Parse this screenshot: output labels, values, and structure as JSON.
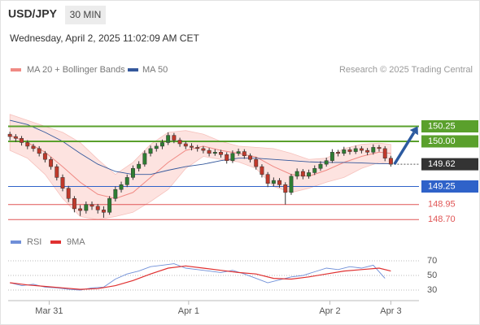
{
  "header": {
    "symbol": "USD/JPY",
    "timeframe": "30 MIN",
    "timestamp": "Wednesday, April 2, 2025 11:02:09 AM CET",
    "credit": "Research © 2025 Trading Central"
  },
  "chart_data": [
    {
      "type": "candlestick",
      "legend": [
        {
          "name": "MA 20 + Bollinger Bands",
          "color": "#f08a84"
        },
        {
          "name": "MA 50",
          "color": "#34589c"
        }
      ],
      "up_color": "#2e7d32",
      "down_color": "#c0392b",
      "opens": [
        150.12,
        150.08,
        150.05,
        149.98,
        149.92,
        149.88,
        149.8,
        149.7,
        149.58,
        149.4,
        149.22,
        149.05,
        148.88,
        148.85,
        148.95,
        148.92,
        148.86,
        148.82,
        149.05,
        149.2,
        149.28,
        149.4,
        149.55,
        149.62,
        149.8,
        149.88,
        149.92,
        149.98,
        150.1,
        150.02,
        149.96,
        149.92,
        149.9,
        149.88,
        149.85,
        149.8,
        149.82,
        149.78,
        149.68,
        149.8,
        149.83,
        149.76,
        149.7,
        149.58,
        149.45,
        149.3,
        149.35,
        149.28,
        149.15,
        149.42,
        149.5,
        149.42,
        149.48,
        149.55,
        149.62,
        149.68,
        149.82,
        149.8,
        149.86,
        149.83,
        149.88,
        149.85,
        149.82,
        149.9,
        149.88,
        149.72
      ],
      "highs": [
        150.16,
        150.12,
        150.09,
        150.02,
        149.96,
        149.92,
        149.84,
        149.74,
        149.62,
        149.45,
        149.26,
        149.09,
        148.94,
        149.0,
        149.0,
        148.96,
        148.92,
        149.09,
        149.25,
        149.33,
        149.45,
        149.6,
        149.67,
        149.85,
        149.93,
        149.97,
        150.03,
        150.15,
        150.14,
        150.06,
        150.0,
        149.97,
        149.94,
        149.92,
        149.89,
        149.87,
        149.86,
        149.82,
        149.85,
        149.88,
        149.87,
        149.8,
        149.74,
        149.62,
        149.49,
        149.4,
        149.39,
        149.32,
        149.46,
        149.55,
        149.54,
        149.53,
        149.6,
        149.67,
        149.73,
        149.87,
        149.86,
        149.91,
        149.9,
        149.93,
        149.92,
        149.89,
        149.95,
        149.94,
        149.92,
        149.76
      ],
      "lows": [
        150.02,
        149.99,
        149.93,
        149.87,
        149.83,
        149.75,
        149.65,
        149.53,
        149.35,
        149.17,
        148.99,
        148.82,
        148.76,
        148.8,
        148.86,
        148.8,
        148.73,
        148.78,
        149.0,
        149.15,
        149.24,
        149.36,
        149.5,
        149.58,
        149.75,
        149.83,
        149.87,
        149.94,
        149.97,
        149.91,
        149.87,
        149.85,
        149.83,
        149.8,
        149.75,
        149.76,
        149.73,
        149.63,
        149.64,
        149.76,
        149.71,
        149.65,
        149.53,
        149.4,
        149.24,
        149.25,
        149.23,
        148.95,
        149.11,
        149.37,
        149.37,
        149.38,
        149.44,
        149.51,
        149.58,
        149.64,
        149.75,
        149.76,
        149.78,
        149.79,
        149.8,
        149.77,
        149.78,
        149.83,
        149.67,
        149.58
      ],
      "closes": [
        150.08,
        150.05,
        149.98,
        149.92,
        149.88,
        149.8,
        149.7,
        149.58,
        149.4,
        149.22,
        149.05,
        148.88,
        148.85,
        148.95,
        148.92,
        148.86,
        148.82,
        149.05,
        149.2,
        149.28,
        149.4,
        149.55,
        149.62,
        149.8,
        149.88,
        149.92,
        149.98,
        150.1,
        150.02,
        149.96,
        149.92,
        149.9,
        149.88,
        149.85,
        149.8,
        149.82,
        149.78,
        149.68,
        149.8,
        149.83,
        149.76,
        149.7,
        149.58,
        149.45,
        149.3,
        149.35,
        149.28,
        149.15,
        149.42,
        149.5,
        149.42,
        149.48,
        149.55,
        149.62,
        149.68,
        149.82,
        149.8,
        149.86,
        149.83,
        149.88,
        149.85,
        149.82,
        149.9,
        149.88,
        149.72,
        149.62
      ],
      "overlays": {
        "x": [
          0,
          3,
          6,
          9,
          12,
          15,
          18,
          21,
          24,
          27,
          30,
          33,
          36,
          39,
          42,
          45,
          48,
          51,
          54,
          57,
          60,
          63,
          65
        ],
        "ma20": [
          150.1,
          149.98,
          149.82,
          149.58,
          149.32,
          149.12,
          149.05,
          149.15,
          149.4,
          149.65,
          149.85,
          149.92,
          149.85,
          149.8,
          149.74,
          149.58,
          149.45,
          149.42,
          149.52,
          149.65,
          149.75,
          149.82,
          149.8
        ],
        "upper": [
          150.45,
          150.35,
          150.25,
          150.15,
          149.98,
          149.7,
          149.45,
          149.65,
          149.95,
          150.15,
          150.18,
          150.12,
          150.0,
          149.92,
          149.9,
          149.88,
          149.8,
          149.7,
          149.72,
          149.88,
          149.95,
          149.97,
          149.95
        ],
        "lower": [
          149.85,
          149.72,
          149.45,
          149.05,
          148.75,
          148.7,
          148.75,
          148.82,
          149.0,
          149.2,
          149.55,
          149.75,
          149.7,
          149.66,
          149.55,
          149.25,
          149.15,
          149.22,
          149.32,
          149.4,
          149.55,
          149.65,
          149.62
        ],
        "ma50": [
          150.35,
          150.28,
          150.15,
          150.0,
          149.8,
          149.62,
          149.5,
          149.45,
          149.45,
          149.52,
          149.58,
          149.62,
          149.68,
          149.72,
          149.72,
          149.7,
          149.68,
          149.66,
          149.65,
          149.65,
          149.64,
          149.63,
          149.63
        ]
      },
      "levels": [
        {
          "value": 150.25,
          "color": "#5aa02c",
          "boxed": true
        },
        {
          "value": {
            "value": 150,
            "label": "150.00"
          },
          "color": "#5aa02c",
          "boxed": true
        },
        {
          "value": 149.25,
          "color": "#2f62c9",
          "boxed": true
        },
        {
          "value": 148.95,
          "color": "#e05555",
          "boxed": false
        },
        {
          "value": {
            "value": 148.7,
            "label": "148.70"
          },
          "color": "#e05555",
          "boxed": false
        }
      ],
      "last_price": 149.62,
      "last_color": "#333333",
      "forecast_arrow": {
        "x": [
          65.6,
          69.6
        ],
        "y": [
          149.62,
          150.25
        ],
        "color": "#2c5aa0"
      },
      "xlim": [
        -0.3,
        69.8
      ],
      "ylim": [
        148.5,
        151.0
      ],
      "xticks": [
        {
          "value": 6.7,
          "label": "Mar 31"
        },
        {
          "value": 30.5,
          "label": "Apr 1"
        },
        {
          "value": 54.6,
          "label": "Apr 2"
        },
        {
          "value": 65,
          "label": "Apr 3"
        }
      ]
    },
    {
      "type": "line",
      "xlim": [
        -0.3,
        69.8
      ],
      "ylim": [
        20,
        80
      ],
      "yticks": [
        30,
        50,
        70
      ],
      "grid": true,
      "series": [
        {
          "name": "RSI",
          "color": "#6f8fd8",
          "x": [
            0,
            2,
            4,
            6,
            8,
            10,
            12,
            14,
            16,
            18,
            20,
            22,
            24,
            26,
            28,
            30,
            32,
            34,
            36,
            38,
            40,
            42,
            44,
            46,
            48,
            50,
            52,
            54,
            56,
            58,
            60,
            62,
            64
          ],
          "values": [
            40,
            36,
            38,
            34,
            33,
            31,
            30,
            33,
            34,
            45,
            52,
            56,
            62,
            64,
            66,
            60,
            58,
            56,
            54,
            57,
            52,
            46,
            40,
            44,
            48,
            50,
            55,
            60,
            58,
            62,
            60,
            64,
            46
          ]
        },
        {
          "name": "9MA",
          "color": "#e03030",
          "x": [
            0,
            3,
            6,
            9,
            12,
            15,
            18,
            21,
            24,
            27,
            30,
            33,
            36,
            39,
            42,
            45,
            48,
            51,
            54,
            57,
            60,
            63,
            65
          ],
          "values": [
            40,
            37,
            35,
            33,
            31,
            32,
            36,
            43,
            52,
            60,
            63,
            60,
            57,
            54,
            52,
            46,
            45,
            48,
            52,
            56,
            58,
            60,
            56
          ]
        }
      ]
    }
  ]
}
